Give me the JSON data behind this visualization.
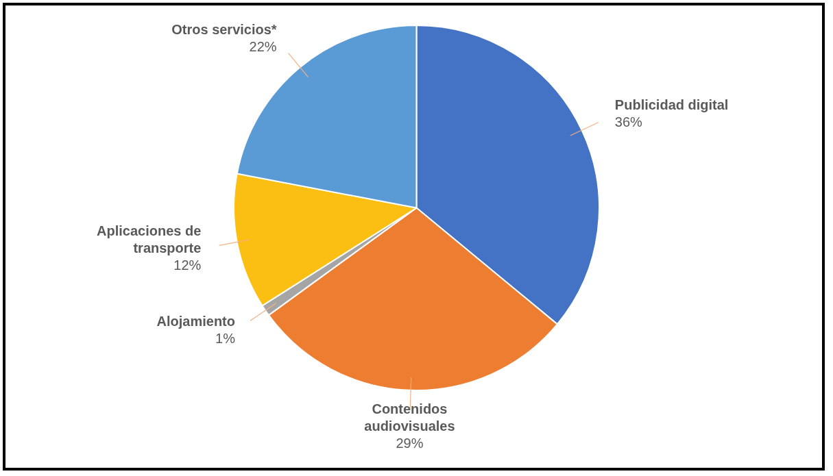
{
  "chart_data": {
    "type": "pie",
    "categories": [
      "Publicidad digital",
      "Contenidos audiovisuales",
      "Alojamiento",
      "Aplicaciones de transporte",
      "Otros servicios*"
    ],
    "values": [
      36,
      29,
      1,
      12,
      22
    ],
    "value_labels": [
      "36%",
      "29%",
      "1%",
      "12%",
      "22%"
    ],
    "colors": [
      "#4472c4",
      "#ed7d31",
      "#a5a5a5",
      "#fbbf14",
      "#5b9bd5"
    ],
    "legend": false
  }
}
